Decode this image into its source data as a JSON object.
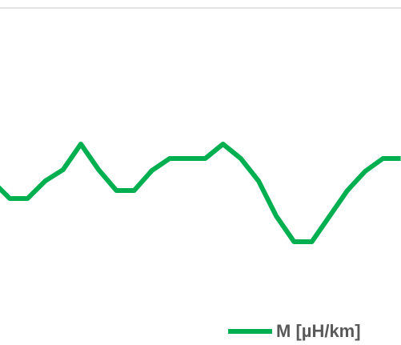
{
  "chart_data": {
    "type": "line",
    "categories": [
      null,
      null,
      null,
      null,
      null,
      null,
      null,
      null,
      null,
      null,
      null,
      null,
      null,
      null,
      null,
      null,
      null,
      null,
      null,
      null,
      null,
      null,
      null,
      null
    ],
    "series": [
      {
        "name": "M [µH/km]",
        "color": "#00b050",
        "values": [
          46,
          40.5,
          40.5,
          46,
          49.5,
          57.5,
          49.5,
          43,
          43,
          49.25,
          53,
          53,
          53,
          57.5,
          53,
          46,
          35,
          27,
          27,
          35,
          43,
          49,
          53,
          53
        ]
      }
    ],
    "ylim": [
      0,
      100
    ],
    "legend": "bottom-right"
  }
}
